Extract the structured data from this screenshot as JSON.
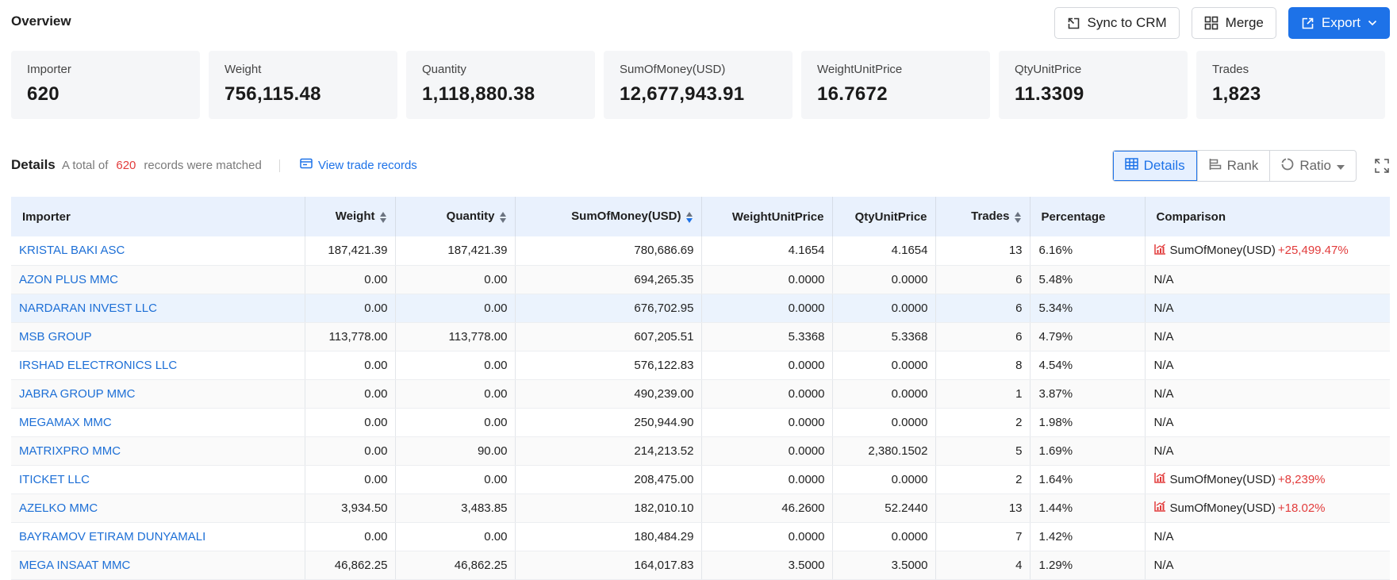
{
  "header": {
    "title": "Overview",
    "sync_label": "Sync to CRM",
    "merge_label": "Merge",
    "export_label": "Export"
  },
  "stats": [
    {
      "label": "Importer",
      "value": "620"
    },
    {
      "label": "Weight",
      "value": "756,115.48"
    },
    {
      "label": "Quantity",
      "value": "1,118,880.38"
    },
    {
      "label": "SumOfMoney(USD)",
      "value": "12,677,943.91"
    },
    {
      "label": "WeightUnitPrice",
      "value": "16.7672"
    },
    {
      "label": "QtyUnitPrice",
      "value": "11.3309"
    },
    {
      "label": "Trades",
      "value": "1,823"
    }
  ],
  "details": {
    "title": "Details",
    "summary_prefix": "A total of",
    "count": "620",
    "summary_suffix": "records were matched",
    "view_records": "View trade records",
    "views": {
      "details": "Details",
      "rank": "Rank",
      "ratio": "Ratio"
    }
  },
  "table": {
    "columns": {
      "importer": "Importer",
      "weight": "Weight",
      "quantity": "Quantity",
      "sum": "SumOfMoney(USD)",
      "wup": "WeightUnitPrice",
      "qup": "QtyUnitPrice",
      "trades": "Trades",
      "percentage": "Percentage",
      "comparison": "Comparison"
    },
    "rows": [
      {
        "importer": "KRISTAL BAKI ASC",
        "weight": "187,421.39",
        "quantity": "187,421.39",
        "sum": "780,686.69",
        "wup": "4.1654",
        "qup": "4.1654",
        "trades": "13",
        "percentage": "6.16%",
        "comparison": {
          "type": "up",
          "metric": "SumOfMoney(USD)",
          "delta": "+25,499.47%"
        }
      },
      {
        "importer": "AZON PLUS MMC",
        "weight": "0.00",
        "quantity": "0.00",
        "sum": "694,265.35",
        "wup": "0.0000",
        "qup": "0.0000",
        "trades": "6",
        "percentage": "5.48%",
        "comparison": {
          "type": "na",
          "text": "N/A"
        }
      },
      {
        "importer": "NARDARAN INVEST LLC",
        "weight": "0.00",
        "quantity": "0.00",
        "sum": "676,702.95",
        "wup": "0.0000",
        "qup": "0.0000",
        "trades": "6",
        "percentage": "5.34%",
        "comparison": {
          "type": "na",
          "text": "N/A"
        }
      },
      {
        "importer": "MSB GROUP",
        "weight": "113,778.00",
        "quantity": "113,778.00",
        "sum": "607,205.51",
        "wup": "5.3368",
        "qup": "5.3368",
        "trades": "6",
        "percentage": "4.79%",
        "comparison": {
          "type": "na",
          "text": "N/A"
        }
      },
      {
        "importer": "IRSHAD ELECTRONICS LLC",
        "weight": "0.00",
        "quantity": "0.00",
        "sum": "576,122.83",
        "wup": "0.0000",
        "qup": "0.0000",
        "trades": "8",
        "percentage": "4.54%",
        "comparison": {
          "type": "na",
          "text": "N/A"
        }
      },
      {
        "importer": "JABRA GROUP MMC",
        "weight": "0.00",
        "quantity": "0.00",
        "sum": "490,239.00",
        "wup": "0.0000",
        "qup": "0.0000",
        "trades": "1",
        "percentage": "3.87%",
        "comparison": {
          "type": "na",
          "text": "N/A"
        }
      },
      {
        "importer": "MEGAMAX MMC",
        "weight": "0.00",
        "quantity": "0.00",
        "sum": "250,944.90",
        "wup": "0.0000",
        "qup": "0.0000",
        "trades": "2",
        "percentage": "1.98%",
        "comparison": {
          "type": "na",
          "text": "N/A"
        }
      },
      {
        "importer": "MATRIXPRO MMC",
        "weight": "0.00",
        "quantity": "90.00",
        "sum": "214,213.52",
        "wup": "0.0000",
        "qup": "2,380.1502",
        "trades": "5",
        "percentage": "1.69%",
        "comparison": {
          "type": "na",
          "text": "N/A"
        }
      },
      {
        "importer": "ITICKET LLC",
        "weight": "0.00",
        "quantity": "0.00",
        "sum": "208,475.00",
        "wup": "0.0000",
        "qup": "0.0000",
        "trades": "2",
        "percentage": "1.64%",
        "comparison": {
          "type": "up",
          "metric": "SumOfMoney(USD)",
          "delta": "+8,239%"
        }
      },
      {
        "importer": "AZELKO MMC",
        "weight": "3,934.50",
        "quantity": "3,483.85",
        "sum": "182,010.10",
        "wup": "46.2600",
        "qup": "52.2440",
        "trades": "13",
        "percentage": "1.44%",
        "comparison": {
          "type": "up",
          "metric": "SumOfMoney(USD)",
          "delta": "+18.02%"
        }
      },
      {
        "importer": "BAYRAMOV ETIRAM DUNYAMALI",
        "weight": "0.00",
        "quantity": "0.00",
        "sum": "180,484.29",
        "wup": "0.0000",
        "qup": "0.0000",
        "trades": "7",
        "percentage": "1.42%",
        "comparison": {
          "type": "na",
          "text": "N/A"
        }
      },
      {
        "importer": "MEGA INSAAT MMC",
        "weight": "46,862.25",
        "quantity": "46,862.25",
        "sum": "164,017.83",
        "wup": "3.5000",
        "qup": "3.5000",
        "trades": "4",
        "percentage": "1.29%",
        "comparison": {
          "type": "na",
          "text": "N/A"
        }
      }
    ],
    "hover_row": 2
  },
  "icons": {
    "sync": "sync-crm-icon",
    "merge": "merge-icon",
    "export": "export-icon",
    "records": "records-icon",
    "details": "table-icon",
    "rank": "rank-icon",
    "ratio": "ratio-icon",
    "fullscreen": "fullscreen-icon",
    "trend": "trend-chart-icon"
  },
  "colors": {
    "accent": "#1d72e8",
    "link": "#1d6fd6",
    "increase": "#e23c3c",
    "count": "#e23c3c"
  }
}
